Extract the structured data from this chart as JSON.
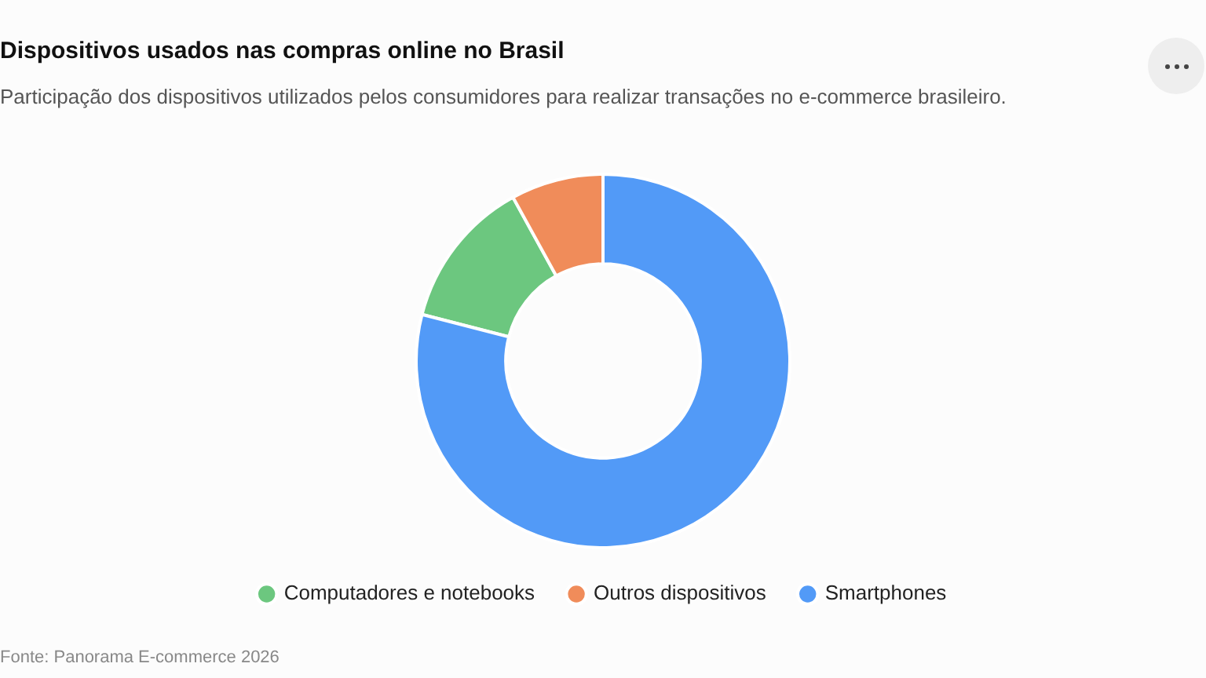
{
  "chart_data": {
    "type": "donut",
    "title": "Dispositivos usados nas compras online no Brasil",
    "subtitle": "Participação dos dispositivos utilizados pelos consumidores para realizar transações no e-commerce brasileiro.",
    "categories": [
      "Computadores e notebooks",
      "Outros dispositivos",
      "Smartphones"
    ],
    "values": [
      13,
      8,
      79
    ],
    "colors": [
      "#6cc77f",
      "#f08c5a",
      "#529af7"
    ],
    "legend": "bottom",
    "annotations": [
      "Fonte: Panorama E-commerce 2026"
    ]
  }
}
